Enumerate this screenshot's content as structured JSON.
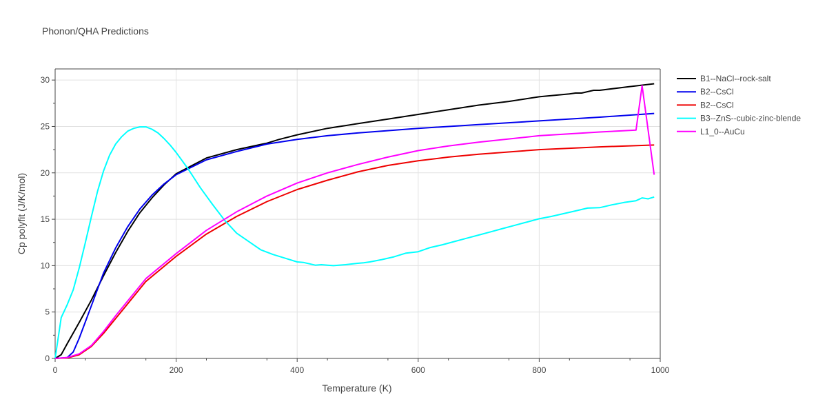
{
  "chart_data": {
    "type": "line",
    "title": "Phonon/QHA Predictions",
    "xlabel": "Temperature (K)",
    "ylabel": "Cp polyfit (J/K/mol)",
    "xlim": [
      0,
      1000
    ],
    "ylim": [
      0,
      31.2
    ],
    "xticks": [
      0,
      200,
      400,
      600,
      800,
      1000
    ],
    "yticks": [
      0,
      5,
      10,
      15,
      20,
      25,
      30
    ],
    "grid": true,
    "legend_position": "right",
    "series": [
      {
        "name": "B1--NaCl--rock-salt",
        "color": "#000000",
        "x": [
          0,
          10,
          20,
          40,
          60,
          80,
          100,
          120,
          140,
          160,
          180,
          200,
          250,
          300,
          350,
          370,
          400,
          450,
          470,
          500,
          550,
          600,
          650,
          700,
          750,
          800,
          850,
          860,
          870,
          890,
          900,
          950,
          990
        ],
        "y": [
          0,
          0.4,
          1.6,
          3.9,
          6.3,
          8.9,
          11.4,
          13.7,
          15.7,
          17.3,
          18.7,
          19.9,
          21.6,
          22.5,
          23.2,
          23.6,
          24.1,
          24.8,
          25.0,
          25.3,
          25.8,
          26.3,
          26.8,
          27.3,
          27.7,
          28.2,
          28.5,
          28.6,
          28.6,
          28.9,
          28.9,
          29.3,
          29.6
        ]
      },
      {
        "name": "B2--CsCl",
        "color": "#0000ee",
        "x": [
          0,
          20,
          30,
          40,
          60,
          80,
          100,
          120,
          140,
          160,
          180,
          200,
          250,
          300,
          350,
          400,
          450,
          500,
          600,
          700,
          800,
          900,
          990
        ],
        "y": [
          0,
          0.1,
          0.7,
          2.2,
          5.7,
          9.2,
          11.9,
          14.2,
          16.1,
          17.6,
          18.8,
          19.8,
          21.4,
          22.3,
          23.1,
          23.6,
          24.0,
          24.3,
          24.8,
          25.2,
          25.6,
          26.0,
          26.4
        ]
      },
      {
        "name": "B2--CsCl",
        "color": "#ee0000",
        "x": [
          0,
          20,
          40,
          60,
          80,
          100,
          120,
          150,
          200,
          250,
          300,
          350,
          400,
          450,
          500,
          550,
          600,
          650,
          700,
          800,
          900,
          990
        ],
        "y": [
          0,
          0.05,
          0.4,
          1.3,
          2.7,
          4.3,
          5.9,
          8.3,
          11.0,
          13.4,
          15.3,
          16.9,
          18.2,
          19.2,
          20.1,
          20.8,
          21.3,
          21.7,
          22.0,
          22.5,
          22.8,
          23.0
        ]
      },
      {
        "name": "B3--ZnS--cubic-zinc-blende",
        "color": "#00ffff",
        "x": [
          0,
          10,
          20,
          30,
          40,
          50,
          60,
          70,
          80,
          90,
          100,
          110,
          120,
          130,
          140,
          150,
          160,
          170,
          180,
          190,
          200,
          220,
          240,
          260,
          280,
          300,
          320,
          340,
          360,
          380,
          400,
          410,
          420,
          430,
          440,
          450,
          460,
          480,
          500,
          510,
          520,
          540,
          560,
          580,
          600,
          620,
          640,
          660,
          680,
          700,
          720,
          740,
          760,
          780,
          800,
          820,
          840,
          860,
          880,
          900,
          920,
          940,
          950,
          960,
          970,
          980,
          990
        ],
        "y": [
          0,
          4.4,
          5.8,
          7.4,
          9.8,
          12.5,
          15.3,
          18.0,
          20.2,
          21.9,
          23.1,
          23.9,
          24.5,
          24.8,
          24.95,
          24.95,
          24.7,
          24.3,
          23.7,
          23.0,
          22.2,
          20.4,
          18.4,
          16.6,
          14.9,
          13.5,
          12.6,
          11.7,
          11.2,
          10.8,
          10.4,
          10.35,
          10.2,
          10.05,
          10.1,
          10.05,
          10.0,
          10.1,
          10.25,
          10.3,
          10.4,
          10.65,
          10.95,
          11.35,
          11.5,
          11.95,
          12.25,
          12.6,
          12.95,
          13.3,
          13.65,
          14.0,
          14.35,
          14.7,
          15.05,
          15.3,
          15.6,
          15.9,
          16.2,
          16.25,
          16.55,
          16.8,
          16.9,
          17.0,
          17.3,
          17.2,
          17.4
        ]
      },
      {
        "name": "L1_0--AuCu",
        "color": "#ff00ff",
        "x": [
          0,
          20,
          40,
          60,
          80,
          100,
          120,
          150,
          200,
          250,
          300,
          350,
          400,
          450,
          500,
          550,
          600,
          650,
          700,
          800,
          900,
          960,
          970,
          990
        ],
        "y": [
          0,
          0.1,
          0.5,
          1.4,
          2.9,
          4.6,
          6.2,
          8.6,
          11.3,
          13.8,
          15.8,
          17.5,
          18.9,
          20.0,
          20.9,
          21.7,
          22.4,
          22.9,
          23.3,
          24.0,
          24.4,
          24.6,
          29.4,
          19.8
        ]
      }
    ]
  }
}
